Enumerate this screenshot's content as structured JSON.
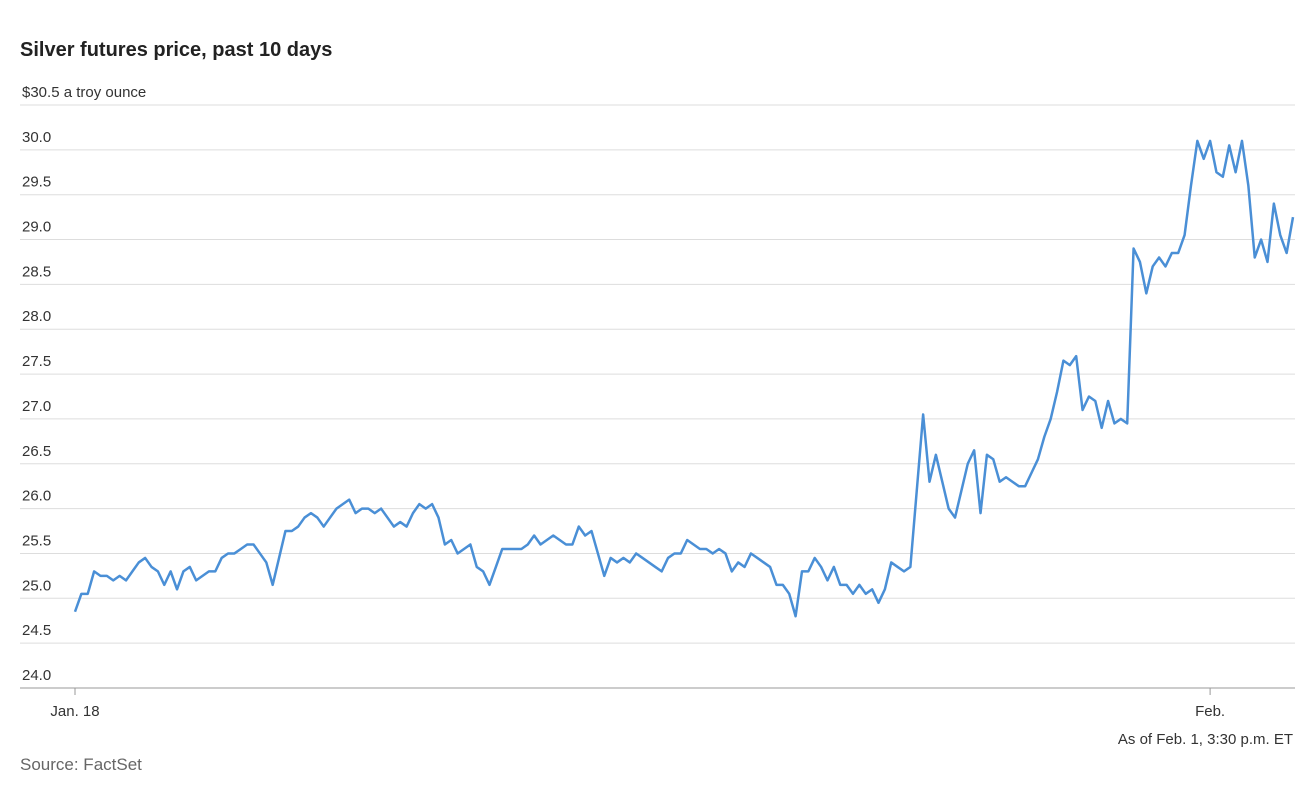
{
  "chart_data": {
    "type": "line",
    "title": "Silver futures price, past 10 days",
    "note": "As of Feb. 1, 3:30 p.m. ET",
    "source": "Source: FactSet",
    "categories": [
      "Jan. 18",
      null,
      null,
      null,
      null,
      null,
      null,
      null,
      null,
      null,
      null,
      null,
      null,
      null,
      null,
      null,
      null,
      null,
      null,
      null,
      null,
      null,
      null,
      null,
      null,
      null,
      null,
      null,
      null,
      null,
      null,
      null,
      null,
      null,
      null,
      null,
      null,
      null,
      null,
      null,
      null,
      null,
      null,
      null,
      null,
      null,
      null,
      null,
      null,
      null,
      null,
      null,
      null,
      null,
      null,
      null,
      null,
      null,
      null,
      null,
      null,
      null,
      null,
      null,
      null,
      null,
      null,
      null,
      null,
      null,
      null,
      null,
      null,
      null,
      null,
      null,
      null,
      null,
      null,
      null,
      null,
      null,
      null,
      null,
      null,
      null,
      null,
      null,
      null,
      null,
      null,
      null,
      null,
      null,
      null,
      null,
      null,
      null,
      null,
      null,
      null,
      null,
      null,
      null,
      null,
      null,
      null,
      null,
      null,
      null,
      null,
      null,
      null,
      null,
      null,
      null,
      null,
      null,
      null,
      null,
      null,
      null,
      null,
      null,
      null,
      null,
      null,
      null,
      null,
      null,
      null,
      null,
      null,
      null,
      null,
      null,
      null,
      null,
      null,
      null,
      null,
      null,
      null,
      null,
      null,
      null,
      null,
      null,
      null,
      null,
      null,
      null,
      null,
      null,
      null,
      null,
      null,
      null,
      null,
      null,
      null,
      null,
      null,
      null,
      null,
      null,
      null,
      null,
      null,
      null,
      null,
      null,
      null,
      null,
      null,
      null,
      null,
      null,
      "Feb.",
      null,
      null,
      null,
      null,
      null,
      null,
      null,
      null,
      null,
      null,
      null,
      null,
      null
    ],
    "series": [
      {
        "name": "Silver futures",
        "color": "#4a8fd6",
        "values": [
          24.85,
          25.05,
          25.05,
          25.3,
          25.25,
          25.25,
          25.2,
          25.25,
          25.2,
          25.3,
          25.4,
          25.45,
          25.35,
          25.3,
          25.15,
          25.3,
          25.1,
          25.3,
          25.35,
          25.2,
          25.25,
          25.3,
          25.3,
          25.45,
          25.5,
          25.5,
          25.55,
          25.6,
          25.6,
          25.5,
          25.4,
          25.15,
          25.45,
          25.75,
          25.75,
          25.8,
          25.9,
          25.95,
          25.9,
          25.8,
          25.9,
          26.0,
          26.05,
          26.1,
          25.95,
          26.0,
          26.0,
          25.95,
          26.0,
          25.9,
          25.8,
          25.85,
          25.8,
          25.95,
          26.05,
          26.0,
          26.05,
          25.9,
          25.6,
          25.65,
          25.5,
          25.55,
          25.6,
          25.35,
          25.3,
          25.15,
          25.35,
          25.55,
          25.55,
          25.55,
          25.55,
          25.6,
          25.7,
          25.6,
          25.65,
          25.7,
          25.65,
          25.6,
          25.6,
          25.8,
          25.7,
          25.75,
          25.5,
          25.25,
          25.45,
          25.4,
          25.45,
          25.4,
          25.5,
          25.45,
          25.4,
          25.35,
          25.3,
          25.45,
          25.5,
          25.5,
          25.65,
          25.6,
          25.55,
          25.55,
          25.5,
          25.55,
          25.5,
          25.3,
          25.4,
          25.35,
          25.5,
          25.45,
          25.4,
          25.35,
          25.15,
          25.15,
          25.05,
          24.8,
          25.3,
          25.3,
          25.45,
          25.35,
          25.2,
          25.35,
          25.15,
          25.15,
          25.05,
          25.15,
          25.05,
          25.1,
          24.95,
          25.1,
          25.4,
          25.35,
          25.3,
          25.35,
          26.2,
          27.05,
          26.3,
          26.6,
          26.3,
          26.0,
          25.9,
          26.2,
          26.5,
          26.65,
          25.95,
          26.6,
          26.55,
          26.3,
          26.35,
          26.3,
          26.25,
          26.25,
          26.4,
          26.55,
          26.8,
          27.0,
          27.3,
          27.65,
          27.6,
          27.7,
          27.1,
          27.25,
          27.2,
          26.9,
          27.2,
          26.95,
          27.0,
          26.95,
          28.9,
          28.75,
          28.4,
          28.7,
          28.8,
          28.7,
          28.85,
          28.85,
          29.05,
          29.6,
          30.1,
          29.9,
          30.1,
          29.75,
          29.7,
          30.05,
          29.75,
          30.1,
          29.6,
          28.8,
          29.0,
          28.75,
          29.4,
          29.05,
          28.85,
          29.25
        ]
      }
    ],
    "ylim": [
      24,
      30.5
    ],
    "yticks": [
      {
        "value": 24,
        "label": "24.0"
      },
      {
        "value": 24.5,
        "label": "24.5"
      },
      {
        "value": 25,
        "label": "25.0"
      },
      {
        "value": 25.5,
        "label": "25.5"
      },
      {
        "value": 26,
        "label": "26.0"
      },
      {
        "value": 26.5,
        "label": "26.5"
      },
      {
        "value": 27,
        "label": "27.0"
      },
      {
        "value": 27.5,
        "label": "27.5"
      },
      {
        "value": 28,
        "label": "28.0"
      },
      {
        "value": 28.5,
        "label": "28.5"
      },
      {
        "value": 29,
        "label": "29.0"
      },
      {
        "value": 29.5,
        "label": "29.5"
      },
      {
        "value": 30,
        "label": "30.0"
      },
      {
        "value": 30.5,
        "label": "$30.5 a troy ounce"
      }
    ],
    "grid": true
  }
}
